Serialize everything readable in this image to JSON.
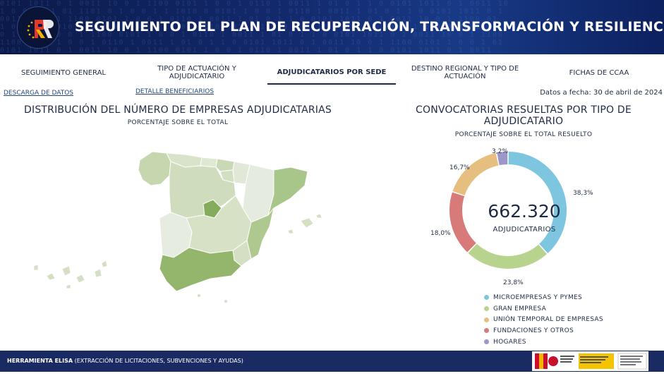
{
  "header": {
    "title": "SEGUIMIENTO DEL PLAN DE RECUPERACIÓN, TRANSFORMACIÓN Y RESILIENCIA",
    "logo_letters": "PR",
    "accent": "#f5b400"
  },
  "nav": {
    "tabs": [
      {
        "label": "SEGUIMIENTO GENERAL"
      },
      {
        "label": "TIPO DE ACTUACIÓN Y ADJUDICATARIO"
      },
      {
        "label": "ADJUDICATARIOS POR SEDE"
      },
      {
        "label": "DESTINO REGIONAL Y TIPO DE ACTUACIÓN"
      },
      {
        "label": "FICHAS DE CCAA"
      }
    ],
    "active_tab": "ADJUDICATARIOS POR SEDE"
  },
  "links": {
    "download": "DESCARGA DE DATOS",
    "beneficiaries": "DETALLE BENEFICIARIOS"
  },
  "date_note": "Datos a fecha: 30 de abril de 2024",
  "map_section": {
    "title": "DISTRIBUCIÓN DEL NÚMERO DE EMPRESAS ADJUDICATARIAS",
    "subtitle": "PORCENTAJE SOBRE EL TOTAL"
  },
  "donut_section": {
    "title_line1": "CONVOCATORIAS RESUELTAS POR TIPO DE",
    "title_line2": "ADJUDICATARIO",
    "subtitle": "PORCENTAJE SOBRE EL TOTAL RESUELTO",
    "center_value": "662.320",
    "center_label": "ADJUDICATARIOS"
  },
  "chart_data": {
    "type": "pie",
    "variant": "donut",
    "categories": [
      "MICROEMPRESAS Y PYMES",
      "GRAN EMPRESA",
      "UNIÓN TEMPORAL DE EMPRESAS",
      "FUNDACIONES Y OTROS",
      "HOGARES"
    ],
    "values": [
      38.3,
      23.8,
      16.7,
      18.0,
      3.2
    ],
    "value_labels": [
      "38,3%",
      "23,8%",
      "16,7%",
      "18,0%",
      "3,2%"
    ],
    "draw_order": [
      0,
      1,
      3,
      2,
      4
    ],
    "colors": [
      "#7ec6e0",
      "#b8d38d",
      "#e6be80",
      "#d97a7a",
      "#9b97c9"
    ],
    "legend_placement": "bottom",
    "title": "CONVOCATORIAS RESUELTAS POR TIPO DE ADJUDICATARIO"
  },
  "footer": {
    "tool_name": "HERRAMIENTA ELISA",
    "tool_desc": " (EXTRACCIÓN DE LICITACIONES, SUBVENCIONES Y AYUDAS)"
  }
}
